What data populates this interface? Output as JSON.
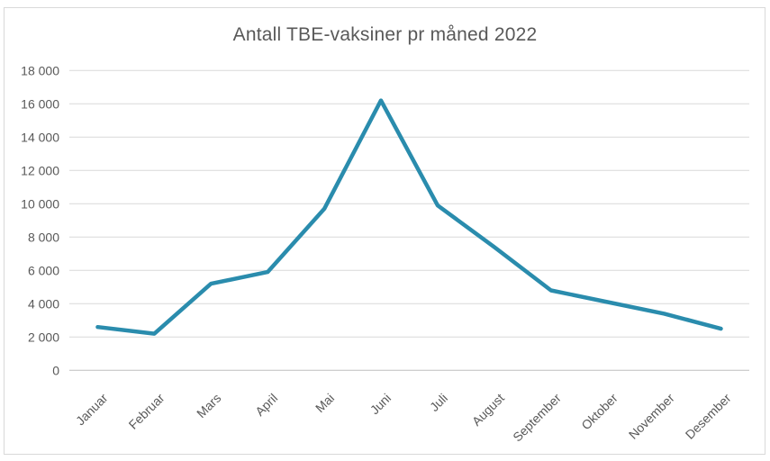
{
  "chart_data": {
    "type": "line",
    "title": "Antall TBE-vaksiner pr måned 2022",
    "categories": [
      "Januar",
      "Februar",
      "Mars",
      "April",
      "Mai",
      "Juni",
      "Juli",
      "August",
      "September",
      "Oktober",
      "November",
      "Desember"
    ],
    "series": [
      {
        "name": "Antall TBE-vaksiner",
        "values": [
          2600,
          2200,
          5200,
          5900,
          9700,
          16200,
          9900,
          7400,
          4800,
          4100,
          3400,
          2500
        ]
      }
    ],
    "xlabel": "",
    "ylabel": "",
    "ylim": [
      0,
      18000
    ],
    "ytick_step": 2000,
    "ytick_labels": [
      "0",
      "2 000",
      "4 000",
      "6 000",
      "8 000",
      "10 000",
      "12 000",
      "14 000",
      "16 000",
      "18 000"
    ],
    "grid": true,
    "legend_position": "none",
    "colors": {
      "line": "#2a8cad",
      "text": "#595959",
      "gridline": "#d9d9d9",
      "axis_line": "#bfbfbf",
      "frame_border": "#d9d9d9",
      "background": "#ffffff"
    }
  }
}
